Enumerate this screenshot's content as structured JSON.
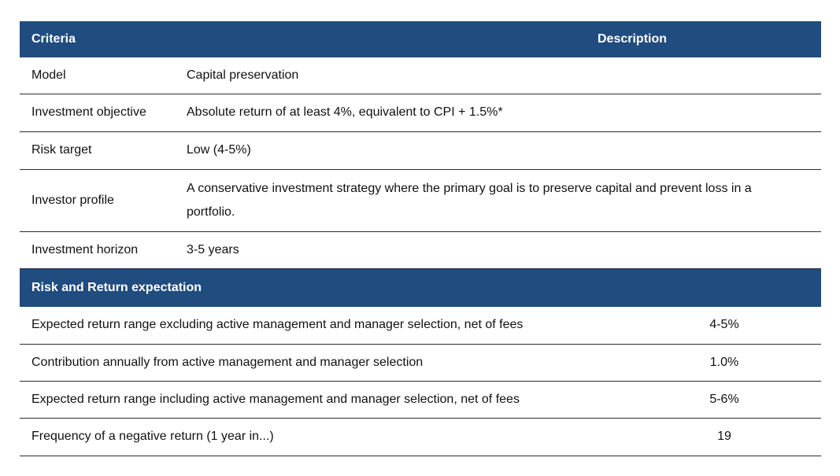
{
  "table": {
    "header": {
      "criteria": "Criteria",
      "description": "Description"
    },
    "rows": [
      {
        "label": "Model",
        "value": "Capital preservation"
      },
      {
        "label": "Investment objective",
        "value": "Absolute return of at least 4%, equivalent to CPI + 1.5%*"
      },
      {
        "label": "Risk target",
        "value": "Low (4-5%)"
      },
      {
        "label": "Investor profile",
        "value": "A conservative investment strategy where the primary goal is to preserve capital and prevent loss in a portfolio."
      },
      {
        "label": "Investment horizon",
        "value": "3-5 years"
      }
    ],
    "section_title": "Risk and Return expectation",
    "expectations": [
      {
        "label": "Expected return range excluding active management and manager selection, net of fees",
        "value": "4-5%"
      },
      {
        "label": "Contribution annually from active management and manager selection",
        "value": "1.0%"
      },
      {
        "label": "Expected return range including active management and manager selection, net of fees",
        "value": "5-6%"
      },
      {
        "label": "Frequency of a negative return (1 year in...)",
        "value": "19"
      }
    ]
  },
  "colors": {
    "header_bg": "#204c7f",
    "header_text": "#ffffff",
    "row_border": "#2b2b2b"
  }
}
